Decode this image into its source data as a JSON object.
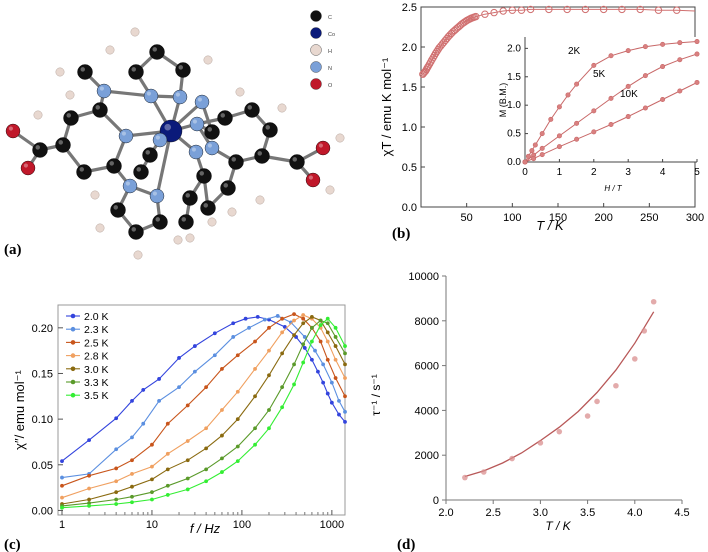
{
  "panel_labels": [
    "(a)",
    "(b)",
    "(c)",
    "(d)"
  ],
  "molecule": {
    "legend": [
      {
        "label": "C",
        "color": "#111111"
      },
      {
        "label": "Co",
        "color": "#0a1a7a"
      },
      {
        "label": "H",
        "color": "#e8d8d0"
      },
      {
        "label": "N",
        "color": "#7aa0d8"
      },
      {
        "label": "O",
        "color": "#c0182a"
      }
    ]
  },
  "chart_data": [
    {
      "panel": "b",
      "type": "scatter",
      "xlabel": "T / K",
      "ylabel": "χT / emu K mol⁻¹",
      "xlim": [
        0,
        300
      ],
      "ylim": [
        0,
        2.5
      ],
      "xticks": [
        "50",
        "100",
        "150",
        "200",
        "250",
        "300"
      ],
      "yticks": [
        "0.0",
        "0.5",
        "1.0",
        "1.5",
        "2.0",
        "2.5"
      ],
      "series": [
        {
          "color": "#d07070",
          "x": [
            2,
            5,
            8,
            12,
            16,
            20,
            25,
            30,
            35,
            40,
            45,
            50,
            55,
            60,
            70,
            80,
            90,
            100,
            110,
            120,
            140,
            160,
            180,
            200,
            220,
            240,
            260,
            280,
            300
          ],
          "y": [
            1.66,
            1.7,
            1.76,
            1.84,
            1.92,
            1.99,
            2.06,
            2.13,
            2.19,
            2.24,
            2.29,
            2.33,
            2.36,
            2.38,
            2.41,
            2.43,
            2.45,
            2.46,
            2.46,
            2.47,
            2.47,
            2.47,
            2.47,
            2.47,
            2.47,
            2.47,
            2.46,
            2.46,
            2.45
          ]
        }
      ],
      "inset": {
        "type": "scatter",
        "xlabel": "H / T",
        "ylabel": "M (B.M.)",
        "xlim": [
          0,
          5
        ],
        "ylim": [
          0,
          2.2
        ],
        "xticks": [
          "0",
          "1",
          "2",
          "3",
          "4",
          "5"
        ],
        "yticks": [
          "0.0",
          "0.5",
          "1.0",
          "1.5",
          "2.0"
        ],
        "series": [
          {
            "name": "2K",
            "x": [
              0,
              0.1,
              0.2,
              0.3,
              0.5,
              0.75,
              1,
              1.25,
              1.5,
              2,
              2.5,
              3,
              3.5,
              4,
              4.5,
              5
            ],
            "y": [
              0,
              0.1,
              0.2,
              0.3,
              0.5,
              0.75,
              0.97,
              1.18,
              1.37,
              1.7,
              1.87,
              1.96,
              2.03,
              2.07,
              2.1,
              2.12
            ]
          },
          {
            "name": "5K",
            "x": [
              0,
              0.25,
              0.5,
              1,
              1.5,
              2,
              2.5,
              3,
              3.5,
              4,
              4.5,
              5
            ],
            "y": [
              0,
              0.12,
              0.24,
              0.46,
              0.68,
              0.9,
              1.12,
              1.33,
              1.52,
              1.68,
              1.8,
              1.9
            ]
          },
          {
            "name": "10K",
            "x": [
              0,
              0.25,
              0.5,
              1,
              1.5,
              2,
              2.5,
              3,
              3.5,
              4,
              4.5,
              5
            ],
            "y": [
              0,
              0.06,
              0.13,
              0.27,
              0.4,
              0.53,
              0.66,
              0.8,
              0.95,
              1.1,
              1.25,
              1.4
            ]
          }
        ]
      }
    },
    {
      "panel": "c",
      "type": "line",
      "xscale": "log",
      "xlabel": "f / Hz",
      "ylabel": "χ″/ emu mol⁻¹",
      "xlim": [
        1,
        1400
      ],
      "ylim": [
        -0.005,
        0.225
      ],
      "xticks": [
        "1",
        "10",
        "100",
        "1000"
      ],
      "yticks": [
        "0.00",
        "0.05",
        "0.10",
        "0.15",
        "0.20"
      ],
      "legend_position": "top-left",
      "series": [
        {
          "name": "2.0 K",
          "color": "#3344dd",
          "x": [
            1,
            2,
            4,
            6,
            8,
            12,
            20,
            30,
            50,
            80,
            110,
            150,
            200,
            300,
            400,
            500,
            600,
            700,
            800,
            900,
            1000,
            1200,
            1400
          ],
          "y": [
            0.054,
            0.077,
            0.101,
            0.12,
            0.132,
            0.144,
            0.167,
            0.18,
            0.194,
            0.205,
            0.21,
            0.212,
            0.209,
            0.201,
            0.19,
            0.178,
            0.165,
            0.152,
            0.14,
            0.128,
            0.118,
            0.105,
            0.097
          ]
        },
        {
          "name": "2.3 K",
          "color": "#5b8fe0",
          "x": [
            1,
            2,
            4,
            6,
            8,
            12,
            20,
            30,
            50,
            80,
            120,
            180,
            250,
            350,
            500,
            650,
            800,
            1000,
            1200,
            1400
          ],
          "y": [
            0.036,
            0.04,
            0.067,
            0.08,
            0.095,
            0.12,
            0.135,
            0.152,
            0.17,
            0.19,
            0.2,
            0.209,
            0.213,
            0.206,
            0.19,
            0.175,
            0.16,
            0.14,
            0.12,
            0.108
          ]
        },
        {
          "name": "2.5 K",
          "color": "#c8551b",
          "x": [
            1,
            2,
            4,
            6,
            10,
            15,
            25,
            40,
            60,
            90,
            140,
            200,
            280,
            380,
            480,
            600,
            750,
            900,
            1100,
            1400
          ],
          "y": [
            0.027,
            0.038,
            0.046,
            0.055,
            0.072,
            0.095,
            0.115,
            0.135,
            0.155,
            0.17,
            0.185,
            0.2,
            0.21,
            0.215,
            0.21,
            0.2,
            0.185,
            0.165,
            0.145,
            0.125
          ]
        },
        {
          "name": "2.8 K",
          "color": "#f0a060",
          "x": [
            1,
            2,
            4,
            6,
            10,
            15,
            25,
            40,
            60,
            90,
            140,
            200,
            280,
            380,
            480,
            600,
            750,
            900,
            1100,
            1400
          ],
          "y": [
            0.014,
            0.024,
            0.032,
            0.04,
            0.048,
            0.062,
            0.076,
            0.09,
            0.11,
            0.13,
            0.155,
            0.175,
            0.195,
            0.208,
            0.214,
            0.21,
            0.2,
            0.185,
            0.165,
            0.145
          ]
        },
        {
          "name": "3.0 K",
          "color": "#8a6a10",
          "x": [
            1,
            2,
            4,
            6,
            10,
            15,
            25,
            40,
            60,
            90,
            140,
            200,
            280,
            380,
            480,
            600,
            750,
            900,
            1100,
            1400
          ],
          "y": [
            0.007,
            0.012,
            0.02,
            0.026,
            0.034,
            0.045,
            0.055,
            0.068,
            0.082,
            0.1,
            0.125,
            0.148,
            0.172,
            0.192,
            0.205,
            0.212,
            0.208,
            0.195,
            0.18,
            0.16
          ]
        },
        {
          "name": "3.3 K",
          "color": "#5a9a2a",
          "x": [
            1,
            2,
            4,
            6,
            10,
            15,
            25,
            40,
            60,
            90,
            140,
            200,
            280,
            380,
            480,
            600,
            750,
            900,
            1100,
            1400
          ],
          "y": [
            0.005,
            0.008,
            0.012,
            0.015,
            0.02,
            0.027,
            0.035,
            0.045,
            0.057,
            0.07,
            0.09,
            0.11,
            0.135,
            0.16,
            0.182,
            0.2,
            0.208,
            0.205,
            0.19,
            0.172
          ]
        },
        {
          "name": "3.5 K",
          "color": "#33ee33",
          "x": [
            1,
            2,
            4,
            6,
            10,
            15,
            25,
            40,
            60,
            90,
            140,
            200,
            280,
            380,
            480,
            600,
            750,
            900,
            1100,
            1400
          ],
          "y": [
            0.003,
            0.005,
            0.007,
            0.009,
            0.012,
            0.017,
            0.023,
            0.032,
            0.042,
            0.054,
            0.072,
            0.09,
            0.113,
            0.138,
            0.162,
            0.185,
            0.203,
            0.21,
            0.2,
            0.18
          ]
        }
      ]
    },
    {
      "panel": "d",
      "type": "scatter",
      "xlabel": "T / K",
      "ylabel": "τ⁻¹ / s⁻¹",
      "xlim": [
        2.0,
        4.5
      ],
      "ylim": [
        0,
        10000
      ],
      "xticks": [
        "2.0",
        "2.5",
        "3.0",
        "3.5",
        "4.0",
        "4.5"
      ],
      "yticks": [
        "0",
        "2000",
        "4000",
        "6000",
        "8000",
        "10000"
      ],
      "series": [
        {
          "color": "#d98f8f",
          "x": [
            2.2,
            2.4,
            2.7,
            3.0,
            3.2,
            3.5,
            3.6,
            3.8,
            4.0,
            4.1,
            4.2
          ],
          "y": [
            1000,
            1250,
            1850,
            2550,
            3050,
            3750,
            4400,
            5100,
            6300,
            7550,
            8850
          ]
        }
      ],
      "fit": {
        "x": [
          2.2,
          2.4,
          2.6,
          2.8,
          3.0,
          3.2,
          3.4,
          3.6,
          3.8,
          4.0,
          4.2
        ],
        "y": [
          1050,
          1300,
          1650,
          2100,
          2650,
          3250,
          3950,
          4800,
          5800,
          7000,
          8400
        ]
      }
    }
  ]
}
